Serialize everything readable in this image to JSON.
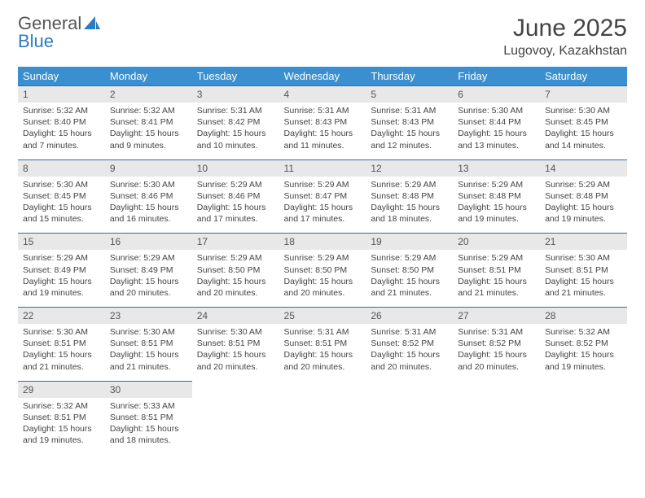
{
  "logo": {
    "text1": "General",
    "text2": "Blue"
  },
  "title": "June 2025",
  "location": "Lugovoy, Kazakhstan",
  "weekdays": [
    "Sunday",
    "Monday",
    "Tuesday",
    "Wednesday",
    "Thursday",
    "Friday",
    "Saturday"
  ],
  "colors": {
    "header_bg": "#3a8fd0",
    "daynum_bg": "#e8e8e8",
    "rule": "#2f6fa5",
    "text": "#444444"
  },
  "weeks": [
    [
      {
        "n": "1",
        "sr": "5:32 AM",
        "ss": "8:40 PM",
        "dl": "15 hours and 7 minutes."
      },
      {
        "n": "2",
        "sr": "5:32 AM",
        "ss": "8:41 PM",
        "dl": "15 hours and 9 minutes."
      },
      {
        "n": "3",
        "sr": "5:31 AM",
        "ss": "8:42 PM",
        "dl": "15 hours and 10 minutes."
      },
      {
        "n": "4",
        "sr": "5:31 AM",
        "ss": "8:43 PM",
        "dl": "15 hours and 11 minutes."
      },
      {
        "n": "5",
        "sr": "5:31 AM",
        "ss": "8:43 PM",
        "dl": "15 hours and 12 minutes."
      },
      {
        "n": "6",
        "sr": "5:30 AM",
        "ss": "8:44 PM",
        "dl": "15 hours and 13 minutes."
      },
      {
        "n": "7",
        "sr": "5:30 AM",
        "ss": "8:45 PM",
        "dl": "15 hours and 14 minutes."
      }
    ],
    [
      {
        "n": "8",
        "sr": "5:30 AM",
        "ss": "8:45 PM",
        "dl": "15 hours and 15 minutes."
      },
      {
        "n": "9",
        "sr": "5:30 AM",
        "ss": "8:46 PM",
        "dl": "15 hours and 16 minutes."
      },
      {
        "n": "10",
        "sr": "5:29 AM",
        "ss": "8:46 PM",
        "dl": "15 hours and 17 minutes."
      },
      {
        "n": "11",
        "sr": "5:29 AM",
        "ss": "8:47 PM",
        "dl": "15 hours and 17 minutes."
      },
      {
        "n": "12",
        "sr": "5:29 AM",
        "ss": "8:48 PM",
        "dl": "15 hours and 18 minutes."
      },
      {
        "n": "13",
        "sr": "5:29 AM",
        "ss": "8:48 PM",
        "dl": "15 hours and 19 minutes."
      },
      {
        "n": "14",
        "sr": "5:29 AM",
        "ss": "8:48 PM",
        "dl": "15 hours and 19 minutes."
      }
    ],
    [
      {
        "n": "15",
        "sr": "5:29 AM",
        "ss": "8:49 PM",
        "dl": "15 hours and 19 minutes."
      },
      {
        "n": "16",
        "sr": "5:29 AM",
        "ss": "8:49 PM",
        "dl": "15 hours and 20 minutes."
      },
      {
        "n": "17",
        "sr": "5:29 AM",
        "ss": "8:50 PM",
        "dl": "15 hours and 20 minutes."
      },
      {
        "n": "18",
        "sr": "5:29 AM",
        "ss": "8:50 PM",
        "dl": "15 hours and 20 minutes."
      },
      {
        "n": "19",
        "sr": "5:29 AM",
        "ss": "8:50 PM",
        "dl": "15 hours and 21 minutes."
      },
      {
        "n": "20",
        "sr": "5:29 AM",
        "ss": "8:51 PM",
        "dl": "15 hours and 21 minutes."
      },
      {
        "n": "21",
        "sr": "5:30 AM",
        "ss": "8:51 PM",
        "dl": "15 hours and 21 minutes."
      }
    ],
    [
      {
        "n": "22",
        "sr": "5:30 AM",
        "ss": "8:51 PM",
        "dl": "15 hours and 21 minutes."
      },
      {
        "n": "23",
        "sr": "5:30 AM",
        "ss": "8:51 PM",
        "dl": "15 hours and 21 minutes."
      },
      {
        "n": "24",
        "sr": "5:30 AM",
        "ss": "8:51 PM",
        "dl": "15 hours and 20 minutes."
      },
      {
        "n": "25",
        "sr": "5:31 AM",
        "ss": "8:51 PM",
        "dl": "15 hours and 20 minutes."
      },
      {
        "n": "26",
        "sr": "5:31 AM",
        "ss": "8:52 PM",
        "dl": "15 hours and 20 minutes."
      },
      {
        "n": "27",
        "sr": "5:31 AM",
        "ss": "8:52 PM",
        "dl": "15 hours and 20 minutes."
      },
      {
        "n": "28",
        "sr": "5:32 AM",
        "ss": "8:52 PM",
        "dl": "15 hours and 19 minutes."
      }
    ],
    [
      {
        "n": "29",
        "sr": "5:32 AM",
        "ss": "8:51 PM",
        "dl": "15 hours and 19 minutes."
      },
      {
        "n": "30",
        "sr": "5:33 AM",
        "ss": "8:51 PM",
        "dl": "15 hours and 18 minutes."
      },
      null,
      null,
      null,
      null,
      null
    ]
  ],
  "labels": {
    "sunrise": "Sunrise: ",
    "sunset": "Sunset: ",
    "daylight": "Daylight: "
  }
}
